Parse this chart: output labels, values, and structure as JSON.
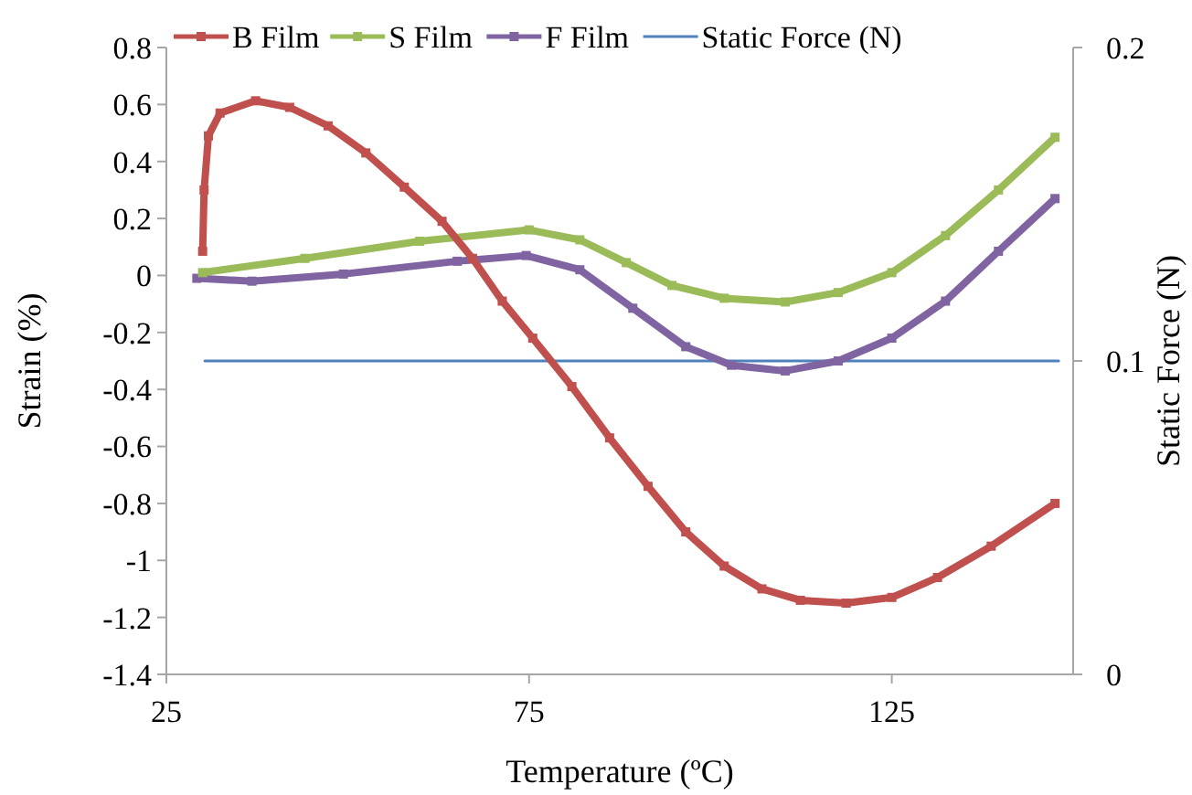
{
  "chart_data": {
    "type": "line",
    "xlabel": "Temperature (ºC)",
    "ylabel": "Strain (%)",
    "y2label": "Static Force (N)",
    "xlim": [
      25,
      150
    ],
    "xticks": [
      25,
      75,
      125
    ],
    "ylim": [
      -1.4,
      0.8
    ],
    "yticks": [
      0.8,
      0.6,
      0.4,
      0.2,
      0,
      -0.2,
      -0.4,
      -0.6,
      -0.8,
      -1,
      -1.2,
      -1.4
    ],
    "y2lim": [
      0,
      0.2
    ],
    "y2ticks": [
      0,
      0.1,
      0.2
    ],
    "grid": false,
    "legend": "top",
    "line_style": "solid",
    "marker": "square",
    "series": [
      {
        "name": "B Film",
        "color": "#c0504d",
        "x": [
          30,
          30.2,
          30.8,
          32.4,
          37.3,
          42,
          47.3,
          52.5,
          57.8,
          63,
          67.2,
          71.3,
          75.5,
          80.9,
          86.1,
          91.4,
          96.6,
          101.9,
          107.1,
          112.4,
          118.7,
          125,
          131.3,
          138.7,
          147.5
        ],
        "values": [
          0.085,
          0.3,
          0.49,
          0.57,
          0.613,
          0.59,
          0.525,
          0.43,
          0.31,
          0.19,
          0.06,
          -0.09,
          -0.22,
          -0.39,
          -0.57,
          -0.74,
          -0.9,
          -1.02,
          -1.1,
          -1.14,
          -1.15,
          -1.13,
          -1.06,
          -0.95,
          -0.8
        ]
      },
      {
        "name": "S Film",
        "color": "#9bbb59",
        "x": [
          30,
          44.1,
          59.9,
          75,
          82,
          88.4,
          94.7,
          101.9,
          110.3,
          117.6,
          125,
          132.4,
          139.7,
          147.5
        ],
        "values": [
          0.01,
          0.06,
          0.12,
          0.16,
          0.125,
          0.045,
          -0.035,
          -0.08,
          -0.093,
          -0.06,
          0.01,
          0.14,
          0.3,
          0.485
        ]
      },
      {
        "name": "F Film",
        "color": "#8064a2",
        "x": [
          29.2,
          36.8,
          49.4,
          65.1,
          74.6,
          82,
          89.3,
          96.6,
          102.9,
          110.3,
          117.6,
          125,
          132.4,
          139.7,
          147.5
        ],
        "values": [
          -0.01,
          -0.02,
          0.005,
          0.05,
          0.07,
          0.02,
          -0.115,
          -0.25,
          -0.315,
          -0.335,
          -0.3,
          -0.22,
          -0.09,
          0.085,
          0.27
        ]
      },
      {
        "name": "Static Force (N)",
        "color": "#4f81bd",
        "axis": "y2",
        "marker": "none",
        "x": [
          30.3,
          148
        ],
        "values": [
          0.1,
          0.1
        ]
      }
    ]
  }
}
